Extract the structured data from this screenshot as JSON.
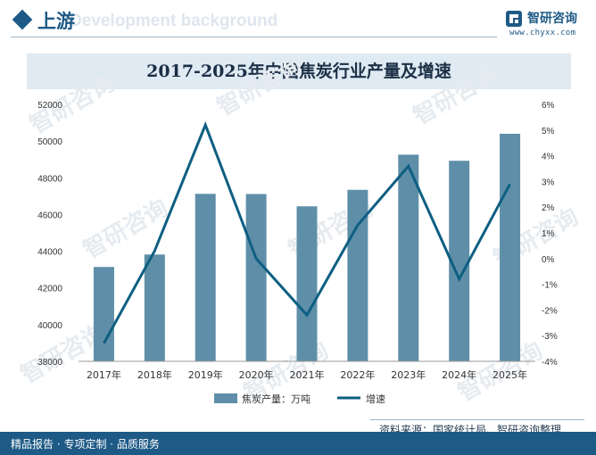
{
  "header": {
    "title": "上游",
    "bg_text": "Development background",
    "brand_name": "智研咨询",
    "brand_url": "www.chyxx.com"
  },
  "watermark": "智研咨询",
  "footer": {
    "left": "精品报告 · 专项定制 · 品质服务",
    "right": "资料来源：国家统计局、智研咨询整理"
  },
  "colors": {
    "bar": "#5f8fa8",
    "line": "#0e5f82",
    "accent": "#1e5a86"
  },
  "chart_data": {
    "type": "bar+line",
    "title": "2017-2025年中国焦炭行业产量及增速",
    "categories": [
      "2017年",
      "2018年",
      "2019年",
      "2020年",
      "2021年",
      "2022年",
      "2023年",
      "2024年",
      "2025年"
    ],
    "series": [
      {
        "name": "焦炭产量：万吨",
        "type": "bar",
        "axis": "left",
        "values": [
          43142,
          43820,
          47126,
          47116,
          46446,
          47344,
          49260,
          48927,
          50400
        ]
      },
      {
        "name": "增速",
        "type": "line",
        "axis": "right",
        "values": [
          -3.3,
          0.3,
          5.2,
          0.0,
          -2.2,
          1.3,
          3.6,
          -0.8,
          2.9
        ]
      }
    ],
    "y_left": {
      "min": 38000,
      "max": 52000,
      "ticks": [
        38000,
        40000,
        42000,
        44000,
        46000,
        48000,
        50000,
        52000
      ]
    },
    "y_right": {
      "min": -4,
      "max": 6,
      "ticks": [
        "-4%",
        "-3%",
        "-2%",
        "-1%",
        "0%",
        "1%",
        "2%",
        "3%",
        "4%",
        "5%",
        "6%"
      ]
    },
    "legend_position": "bottom-center",
    "grid": false
  }
}
